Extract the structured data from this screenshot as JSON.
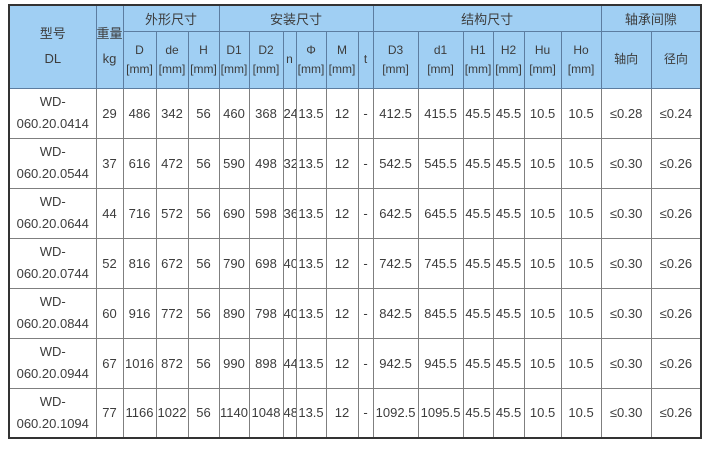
{
  "colors": {
    "header_bg": "#A0CFF3",
    "header_border": "#5C7DA0",
    "body_border": "#7F7F7F",
    "outer_border": "#333333",
    "text": "#3C3C3C",
    "row_bg": "#FFFFFF"
  },
  "table": {
    "corner": {
      "model_line1": "型号",
      "model_line2": "DL",
      "weight_line1": "重量",
      "weight_line2": "kg"
    },
    "groups": [
      {
        "label": "外形尺寸"
      },
      {
        "label": "安装尺寸"
      },
      {
        "label": "结构尺寸"
      },
      {
        "label": "轴承间隙"
      }
    ],
    "sub_headers": [
      {
        "key": "d-outer",
        "label": "D",
        "unit": "[mm]"
      },
      {
        "key": "de",
        "label": "de",
        "unit": "[mm]"
      },
      {
        "key": "h",
        "label": "H",
        "unit": "[mm]"
      },
      {
        "key": "d1",
        "label": "D1",
        "unit": "[mm]"
      },
      {
        "key": "d2",
        "label": "D2",
        "unit": "[mm]"
      },
      {
        "key": "n",
        "label": "n",
        "unit": ""
      },
      {
        "key": "phi",
        "label": "Φ",
        "unit": "[mm]"
      },
      {
        "key": "m",
        "label": "M",
        "unit": "[mm]"
      },
      {
        "key": "t",
        "label": "t",
        "unit": ""
      },
      {
        "key": "d3",
        "label": "D3",
        "unit": "[mm]"
      },
      {
        "key": "d1-inner",
        "label": "d1",
        "unit": "[mm]"
      },
      {
        "key": "h1",
        "label": "H1",
        "unit": "[mm]"
      },
      {
        "key": "h2",
        "label": "H2",
        "unit": "[mm]"
      },
      {
        "key": "hu",
        "label": "Hu",
        "unit": "[mm]"
      },
      {
        "key": "ho",
        "label": "Ho",
        "unit": "[mm]"
      },
      {
        "key": "axial",
        "label": "轴向",
        "unit": ""
      },
      {
        "key": "radial",
        "label": "径向",
        "unit": ""
      }
    ],
    "rows": [
      {
        "model_lines": [
          "WD-",
          "060.20.0414"
        ],
        "values": [
          "29",
          "486",
          "342",
          "56",
          "460",
          "368",
          "24",
          "13.5",
          "12",
          "-",
          "412.5",
          "415.5",
          "45.5",
          "45.5",
          "10.5",
          "10.5",
          "≤0.28",
          "≤0.24"
        ]
      },
      {
        "model_lines": [
          "WD-",
          "060.20.0544"
        ],
        "values": [
          "37",
          "616",
          "472",
          "56",
          "590",
          "498",
          "32",
          "13.5",
          "12",
          "-",
          "542.5",
          "545.5",
          "45.5",
          "45.5",
          "10.5",
          "10.5",
          "≤0.30",
          "≤0.26"
        ]
      },
      {
        "model_lines": [
          "WD-",
          "060.20.0644"
        ],
        "values": [
          "44",
          "716",
          "572",
          "56",
          "690",
          "598",
          "36",
          "13.5",
          "12",
          "-",
          "642.5",
          "645.5",
          "45.5",
          "45.5",
          "10.5",
          "10.5",
          "≤0.30",
          "≤0.26"
        ]
      },
      {
        "model_lines": [
          "WD-",
          "060.20.0744"
        ],
        "values": [
          "52",
          "816",
          "672",
          "56",
          "790",
          "698",
          "40",
          "13.5",
          "12",
          "-",
          "742.5",
          "745.5",
          "45.5",
          "45.5",
          "10.5",
          "10.5",
          "≤0.30",
          "≤0.26"
        ]
      },
      {
        "model_lines": [
          "WD-",
          "060.20.0844"
        ],
        "values": [
          "60",
          "916",
          "772",
          "56",
          "890",
          "798",
          "40",
          "13.5",
          "12",
          "-",
          "842.5",
          "845.5",
          "45.5",
          "45.5",
          "10.5",
          "10.5",
          "≤0.30",
          "≤0.26"
        ]
      },
      {
        "model_lines": [
          "WD-",
          "060.20.0944"
        ],
        "values": [
          "67",
          "1016",
          "872",
          "56",
          "990",
          "898",
          "44",
          "13.5",
          "12",
          "-",
          "942.5",
          "945.5",
          "45.5",
          "45.5",
          "10.5",
          "10.5",
          "≤0.30",
          "≤0.26"
        ]
      },
      {
        "model_lines": [
          "WD-",
          "060.20.1094"
        ],
        "values": [
          "77",
          "1166",
          "1022",
          "56",
          "1140",
          "1048",
          "48",
          "13.5",
          "12",
          "-",
          "1092.5",
          "1095.5",
          "45.5",
          "45.5",
          "10.5",
          "10.5",
          "≤0.30",
          "≤0.26"
        ]
      }
    ]
  }
}
